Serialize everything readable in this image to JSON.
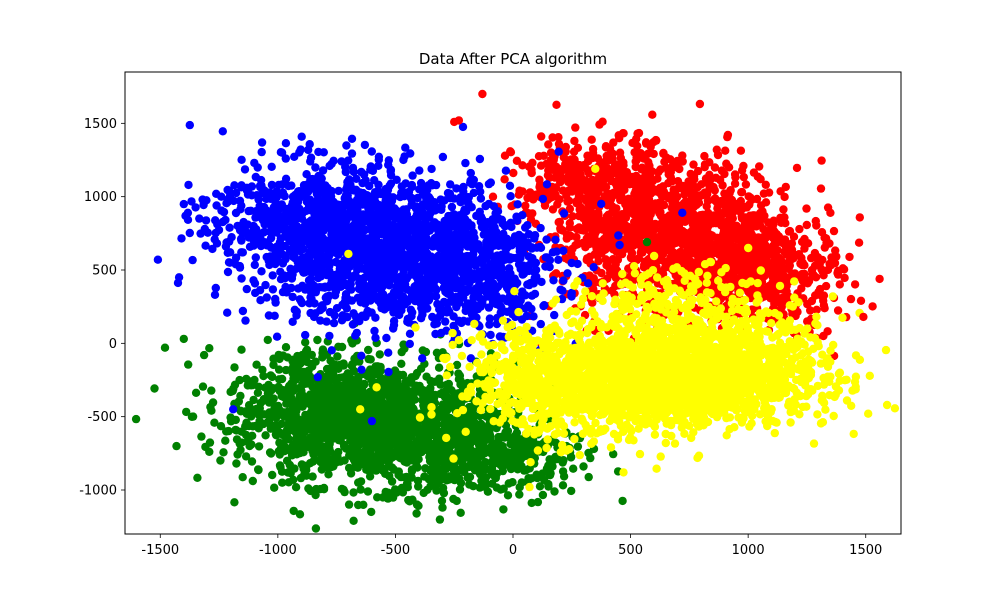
{
  "chart_data": {
    "type": "scatter",
    "title": "Data After PCA algorithm",
    "xlabel": "",
    "ylabel": "",
    "xlim": [
      -1650,
      1650
    ],
    "ylim": [
      -1300,
      1850
    ],
    "xticks": [
      -1500,
      -1000,
      -500,
      0,
      500,
      1000,
      1500
    ],
    "yticks": [
      -1000,
      -500,
      0,
      500,
      1000,
      1500
    ],
    "grid": false,
    "series": [
      {
        "color": "#ff0000",
        "clusters": [
          {
            "cx": 700,
            "cy": 700,
            "sx": 260,
            "sy": 260,
            "n": 1300
          },
          {
            "cx": 350,
            "cy": 1100,
            "sx": 170,
            "sy": 150,
            "n": 350
          },
          {
            "cx": 1100,
            "cy": 450,
            "sx": 150,
            "sy": 170,
            "n": 300
          }
        ]
      },
      {
        "color": "#0000ff",
        "clusters": [
          {
            "cx": -550,
            "cy": 650,
            "sx": 280,
            "sy": 250,
            "n": 1500
          },
          {
            "cx": -950,
            "cy": 850,
            "sx": 180,
            "sy": 200,
            "n": 350
          },
          {
            "cx": -150,
            "cy": 450,
            "sx": 180,
            "sy": 200,
            "n": 400
          }
        ]
      },
      {
        "color": "#008000",
        "clusters": [
          {
            "cx": -550,
            "cy": -550,
            "sx": 280,
            "sy": 210,
            "n": 1400
          },
          {
            "cx": -900,
            "cy": -400,
            "sx": 160,
            "sy": 200,
            "n": 300
          },
          {
            "cx": -100,
            "cy": -750,
            "sx": 200,
            "sy": 150,
            "n": 350
          }
        ]
      },
      {
        "color": "#ffff00",
        "clusters": [
          {
            "cx": 600,
            "cy": -250,
            "sx": 300,
            "sy": 170,
            "n": 1700
          },
          {
            "cx": 1050,
            "cy": -150,
            "sx": 180,
            "sy": 170,
            "n": 400
          },
          {
            "cx": 150,
            "cy": -250,
            "sx": 180,
            "sy": 200,
            "n": 400
          },
          {
            "cx": 700,
            "cy": 200,
            "sx": 200,
            "sy": 160,
            "n": 300
          }
        ]
      }
    ],
    "points": [
      {
        "x": -130,
        "y": 1700,
        "c": "#ff0000"
      },
      {
        "x": -250,
        "y": 1510,
        "c": "#ff0000"
      },
      {
        "x": -230,
        "y": 1520,
        "c": "#ff0000"
      },
      {
        "x": 530,
        "y": 1430,
        "c": "#ff0000"
      },
      {
        "x": 120,
        "y": 1410,
        "c": "#ff0000"
      },
      {
        "x": 1380,
        "y": 480,
        "c": "#ff0000"
      },
      {
        "x": 1480,
        "y": 290,
        "c": "#ff0000"
      },
      {
        "x": 1490,
        "y": 180,
        "c": "#ff0000"
      },
      {
        "x": 1320,
        "y": 50,
        "c": "#ff0000"
      },
      {
        "x": -1510,
        "y": 570,
        "c": "#0000ff"
      },
      {
        "x": -1380,
        "y": 1080,
        "c": "#0000ff"
      },
      {
        "x": -1420,
        "y": 450,
        "c": "#0000ff"
      },
      {
        "x": -1320,
        "y": 980,
        "c": "#0000ff"
      },
      {
        "x": -1100,
        "y": 1230,
        "c": "#0000ff"
      },
      {
        "x": -780,
        "y": 1210,
        "c": "#0000ff"
      },
      {
        "x": -1190,
        "y": -450,
        "c": "#0000ff"
      },
      {
        "x": -600,
        "y": -530,
        "c": "#0000ff"
      },
      {
        "x": -830,
        "y": -230,
        "c": "#0000ff"
      },
      {
        "x": 720,
        "y": 890,
        "c": "#0000ff"
      },
      {
        "x": -1480,
        "y": -30,
        "c": "#008000"
      },
      {
        "x": -1400,
        "y": 30,
        "c": "#008000"
      },
      {
        "x": -870,
        "y": -990,
        "c": "#008000"
      },
      {
        "x": -410,
        "y": -1160,
        "c": "#008000"
      },
      {
        "x": -300,
        "y": -1120,
        "c": "#008000"
      },
      {
        "x": 150,
        "y": -960,
        "c": "#008000"
      },
      {
        "x": 300,
        "y": -840,
        "c": "#008000"
      },
      {
        "x": 570,
        "y": 690,
        "c": "#008000"
      },
      {
        "x": -700,
        "y": 610,
        "c": "#ffff00"
      },
      {
        "x": 350,
        "y": 1190,
        "c": "#ffff00"
      },
      {
        "x": 470,
        "y": -880,
        "c": "#ffff00"
      },
      {
        "x": 70,
        "y": -980,
        "c": "#ffff00"
      },
      {
        "x": 1390,
        "y": -200,
        "c": "#ffff00"
      },
      {
        "x": 1350,
        "y": -50,
        "c": "#ffff00"
      },
      {
        "x": -650,
        "y": -450,
        "c": "#ffff00"
      },
      {
        "x": -580,
        "y": -300,
        "c": "#ffff00"
      },
      {
        "x": 1000,
        "y": 650,
        "c": "#ffff00"
      },
      {
        "x": 1360,
        "y": 320,
        "c": "#ffff00"
      }
    ]
  }
}
